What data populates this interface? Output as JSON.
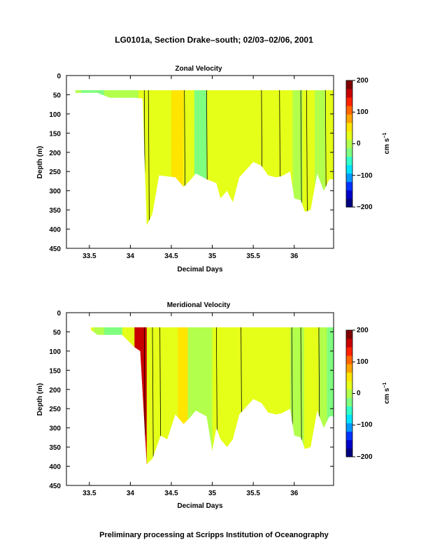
{
  "page": {
    "title": "LG0101a, Section Drake–south; 02/03–02/06, 2001",
    "footer": "Preliminary processing at Scripps Institution of Oceanography"
  },
  "colorbar": {
    "ticks": [
      "200",
      "100",
      "0",
      "−100",
      "−200"
    ],
    "unit_label": "cm s",
    "unit_exp": "−1",
    "colors": [
      "#00007f",
      "#0000c8",
      "#0033ff",
      "#0099ff",
      "#00e5ff",
      "#33ffcc",
      "#7fff7f",
      "#b2ff4c",
      "#e5ff19",
      "#ffe500",
      "#ffa500",
      "#ff6600",
      "#ff2200",
      "#c80000",
      "#7f0000"
    ]
  },
  "chart_data": [
    {
      "type": "heatmap",
      "title": "Zonal Velocity",
      "xlabel": "Decimal Days",
      "ylabel": "Depth (m)",
      "xlim": [
        33.22,
        36.48
      ],
      "ylim": [
        450,
        0
      ],
      "x_ticks": [
        "33.5",
        "34",
        "34.5",
        "35",
        "35.5",
        "36"
      ],
      "y_ticks": [
        "0",
        "50",
        "100",
        "150",
        "200",
        "250",
        "300",
        "350",
        "400",
        "450"
      ],
      "value_range_cm_s": [
        -200,
        200
      ],
      "top_depth_m": 38,
      "bottom_depth_m": [
        [
          33.33,
          45
        ],
        [
          33.6,
          45
        ],
        [
          33.75,
          58
        ],
        [
          34.05,
          58
        ],
        [
          34.15,
          60
        ],
        [
          34.2,
          390
        ],
        [
          34.27,
          360
        ],
        [
          34.35,
          260
        ],
        [
          34.55,
          265
        ],
        [
          34.65,
          290
        ],
        [
          34.72,
          275
        ],
        [
          34.8,
          255
        ],
        [
          34.93,
          270
        ],
        [
          35.05,
          280
        ],
        [
          35.1,
          320
        ],
        [
          35.18,
          300
        ],
        [
          35.25,
          330
        ],
        [
          35.33,
          265
        ],
        [
          35.5,
          225
        ],
        [
          35.6,
          235
        ],
        [
          35.68,
          260
        ],
        [
          35.78,
          265
        ],
        [
          35.85,
          262
        ],
        [
          35.95,
          250
        ],
        [
          36.0,
          320
        ],
        [
          36.08,
          325
        ],
        [
          36.13,
          355
        ],
        [
          36.2,
          350
        ],
        [
          36.28,
          255
        ],
        [
          36.36,
          300
        ],
        [
          36.43,
          270
        ],
        [
          36.48,
          270
        ]
      ],
      "columns": [
        {
          "x0": 33.22,
          "x1": 33.4,
          "v": -5
        },
        {
          "x0": 33.4,
          "x1": 33.68,
          "v": -20
        },
        {
          "x0": 33.68,
          "x1": 33.88,
          "v": -8
        },
        {
          "x0": 33.88,
          "x1": 34.1,
          "v": 5
        },
        {
          "x0": 34.1,
          "x1": 34.22,
          "v": 22
        },
        {
          "x0": 34.22,
          "x1": 34.5,
          "v": 30
        },
        {
          "x0": 34.5,
          "x1": 34.65,
          "v": 40
        },
        {
          "x0": 34.65,
          "x1": 34.78,
          "v": 25
        },
        {
          "x0": 34.78,
          "x1": 34.93,
          "v": -15
        },
        {
          "x0": 34.93,
          "x1": 35.18,
          "v": 32
        },
        {
          "x0": 35.18,
          "x1": 35.38,
          "v": 15
        },
        {
          "x0": 35.38,
          "x1": 35.6,
          "v": 35
        },
        {
          "x0": 35.6,
          "x1": 35.78,
          "v": 18
        },
        {
          "x0": 35.78,
          "x1": 35.98,
          "v": 28
        },
        {
          "x0": 35.98,
          "x1": 36.1,
          "v": -5
        },
        {
          "x0": 36.1,
          "x1": 36.25,
          "v": 20
        },
        {
          "x0": 36.25,
          "x1": 36.38,
          "v": 8
        },
        {
          "x0": 36.38,
          "x1": 36.48,
          "v": 25
        }
      ],
      "contours_x": [
        34.17,
        34.22,
        34.66,
        34.93,
        35.6,
        35.82,
        36.08,
        36.15,
        36.38
      ]
    },
    {
      "type": "heatmap",
      "title": "Meridional Velocity",
      "xlabel": "Decimal Days",
      "ylabel": "Depth (m)",
      "xlim": [
        33.22,
        36.48
      ],
      "ylim": [
        450,
        0
      ],
      "x_ticks": [
        "33.5",
        "34",
        "34.5",
        "35",
        "35.5",
        "36"
      ],
      "y_ticks": [
        "0",
        "50",
        "100",
        "150",
        "200",
        "250",
        "300",
        "350",
        "400",
        "450"
      ],
      "value_range_cm_s": [
        -200,
        200
      ],
      "top_depth_m": 38,
      "bottom_depth_m": [
        [
          33.52,
          45
        ],
        [
          33.6,
          58
        ],
        [
          33.9,
          58
        ],
        [
          34.05,
          90
        ],
        [
          34.12,
          100
        ],
        [
          34.2,
          395
        ],
        [
          34.27,
          380
        ],
        [
          34.37,
          320
        ],
        [
          34.45,
          330
        ],
        [
          34.55,
          265
        ],
        [
          34.65,
          290
        ],
        [
          34.72,
          275
        ],
        [
          34.8,
          255
        ],
        [
          34.93,
          270
        ],
        [
          35.0,
          360
        ],
        [
          35.05,
          300
        ],
        [
          35.1,
          330
        ],
        [
          35.18,
          350
        ],
        [
          35.25,
          330
        ],
        [
          35.33,
          265
        ],
        [
          35.5,
          225
        ],
        [
          35.6,
          235
        ],
        [
          35.68,
          260
        ],
        [
          35.78,
          265
        ],
        [
          35.85,
          262
        ],
        [
          35.95,
          250
        ],
        [
          36.0,
          320
        ],
        [
          36.08,
          325
        ],
        [
          36.13,
          355
        ],
        [
          36.2,
          350
        ],
        [
          36.28,
          255
        ],
        [
          36.36,
          300
        ],
        [
          36.43,
          270
        ],
        [
          36.48,
          270
        ]
      ],
      "columns": [
        {
          "x0": 33.22,
          "x1": 33.55,
          "v": 30
        },
        {
          "x0": 33.55,
          "x1": 33.68,
          "v": 10
        },
        {
          "x0": 33.68,
          "x1": 33.9,
          "v": -25
        },
        {
          "x0": 33.9,
          "x1": 34.05,
          "v": 15
        },
        {
          "x0": 34.05,
          "x1": 34.2,
          "v": 150
        },
        {
          "x0": 34.2,
          "x1": 34.38,
          "v": 35
        },
        {
          "x0": 34.38,
          "x1": 34.58,
          "v": 15
        },
        {
          "x0": 34.58,
          "x1": 34.7,
          "v": 45
        },
        {
          "x0": 34.7,
          "x1": 34.82,
          "v": -10
        },
        {
          "x0": 34.82,
          "x1": 35.0,
          "v": 5
        },
        {
          "x0": 35.0,
          "x1": 35.25,
          "v": 20
        },
        {
          "x0": 35.25,
          "x1": 35.6,
          "v": 15
        },
        {
          "x0": 35.6,
          "x1": 35.95,
          "v": 22
        },
        {
          "x0": 35.95,
          "x1": 36.12,
          "v": 10
        },
        {
          "x0": 36.12,
          "x1": 36.3,
          "v": 25
        },
        {
          "x0": 36.3,
          "x1": 36.4,
          "v": 5
        },
        {
          "x0": 36.4,
          "x1": 36.48,
          "v": -40
        }
      ],
      "contours_x": [
        34.17,
        34.27,
        34.36,
        35.05,
        35.35,
        35.97,
        36.08,
        36.3
      ]
    }
  ]
}
